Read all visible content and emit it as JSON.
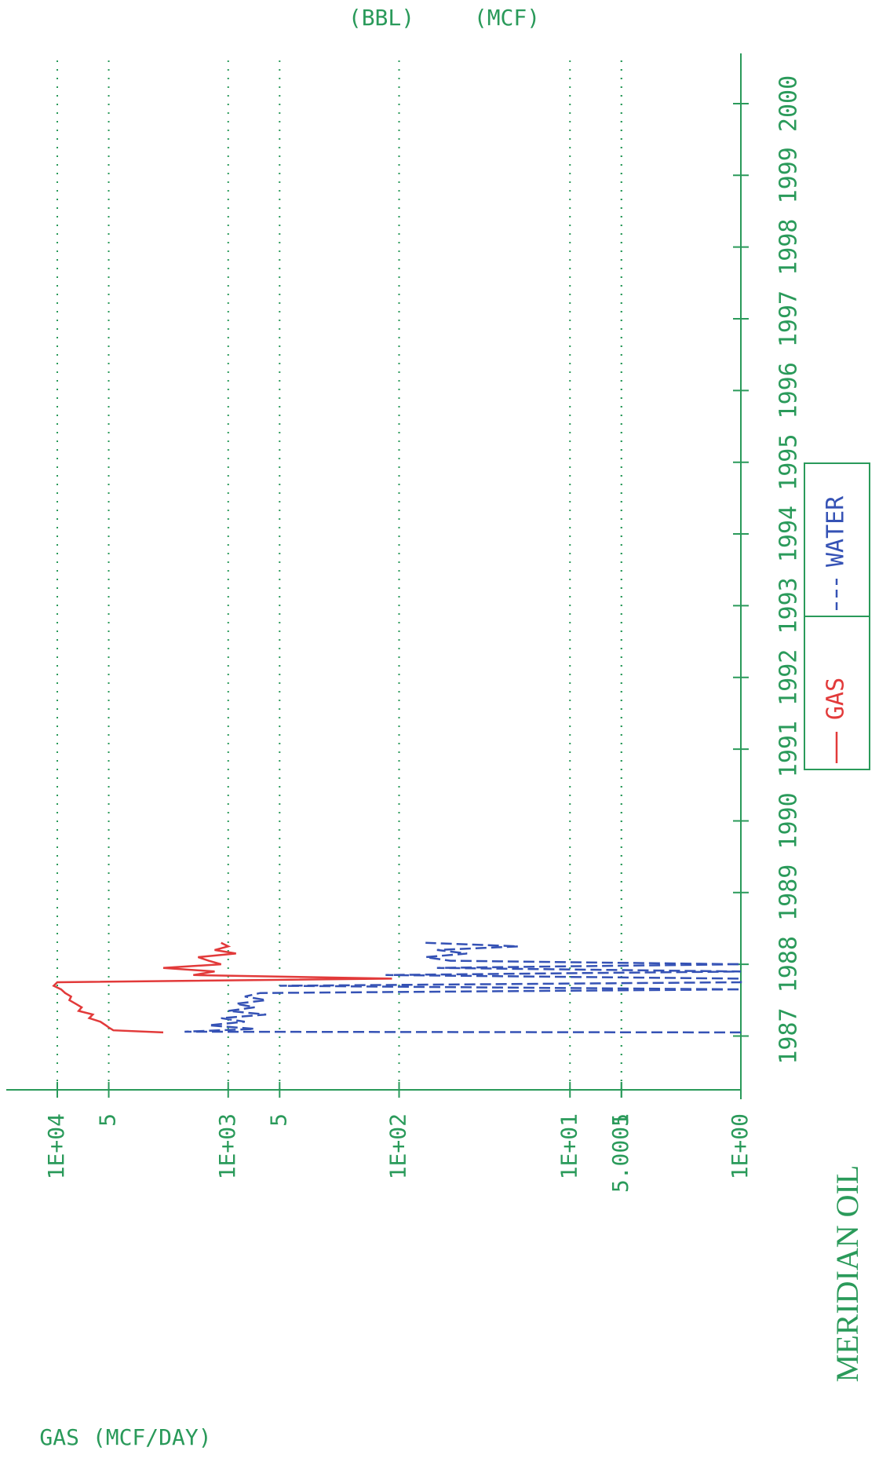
{
  "chart_data": {
    "type": "line",
    "ylabel": "GAS (MCF/DAY)",
    "annotations": [
      "(BBL)",
      "(MCF)"
    ],
    "footer": "MERIDIAN OIL",
    "log_y": true,
    "grid": true,
    "xlim": [
      1986.25,
      2000.7
    ],
    "xticks": [
      1987,
      1988,
      1989,
      1990,
      1991,
      1992,
      1993,
      1994,
      1995,
      1996,
      1997,
      1998,
      1999,
      2000
    ],
    "ylim": [
      1,
      10000
    ],
    "yticks": [
      {
        "value": 1,
        "label": "1E+00"
      },
      5,
      {
        "value": 10,
        "label": "1E+01"
      },
      5.0001,
      {
        "value": 100,
        "label": "1E+02"
      },
      {
        "value": 500,
        "label": "5"
      },
      {
        "value": 1000,
        "label": "1E+03"
      },
      {
        "value": 5000,
        "label": "5"
      },
      {
        "value": 10000,
        "label": "1E+04"
      }
    ],
    "series": [
      {
        "name": "GAS",
        "color": "#e23a3a",
        "dash": false,
        "x": [
          1987.05,
          1987.08,
          1987.12,
          1987.15,
          1987.2,
          1987.25,
          1987.3,
          1987.35,
          1987.4,
          1987.45,
          1987.5,
          1987.55,
          1987.6,
          1987.65,
          1987.7,
          1987.75,
          1987.8,
          1987.85,
          1987.9,
          1987.95,
          1988.0,
          1988.05,
          1988.1,
          1988.15,
          1988.2,
          1988.25,
          1988.3
        ],
        "values": [
          2400,
          4700,
          5000,
          5200,
          5600,
          6500,
          6200,
          7500,
          7200,
          7800,
          8500,
          8300,
          9000,
          9500,
          10500,
          10000,
          110,
          1600,
          1200,
          2400,
          1100,
          1300,
          1500,
          900,
          1200,
          1000,
          1100
        ]
      },
      {
        "name": "WATER",
        "color": "#3552b5",
        "dash": true,
        "x": [
          1987.05,
          1987.06,
          1987.1,
          1987.15,
          1987.2,
          1987.25,
          1987.3,
          1987.35,
          1987.4,
          1987.45,
          1987.5,
          1987.55,
          1987.6,
          1987.65,
          1987.7,
          1987.75,
          1987.8,
          1987.85,
          1987.9,
          1987.95,
          1988.0,
          1988.05,
          1988.1,
          1988.15,
          1988.2,
          1988.25,
          1988.3
        ],
        "values": [
          1,
          1800,
          700,
          1300,
          800,
          1100,
          600,
          1000,
          700,
          900,
          600,
          800,
          650,
          1,
          500,
          1,
          1,
          120,
          1,
          60,
          1,
          50,
          70,
          40,
          60,
          20,
          70
        ]
      }
    ]
  }
}
